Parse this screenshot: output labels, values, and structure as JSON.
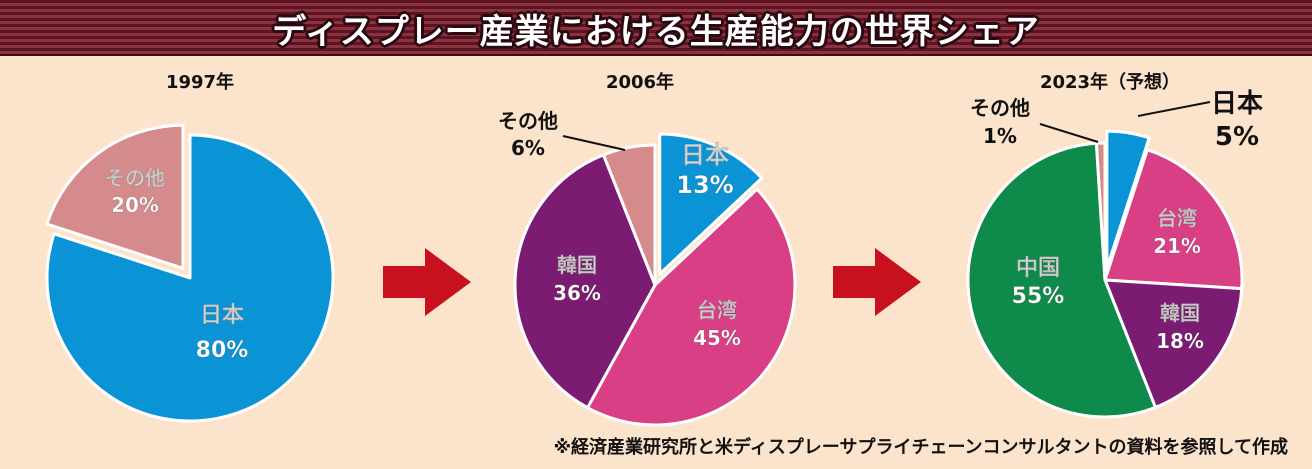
{
  "title": "ディスプレー産業における生産能力の世界シェア",
  "source": "※経済産業研究所と米ディスプレーサプライチェーンコンサルタントの資料を参照して作成",
  "colors": {
    "japan": "#0a94d6",
    "taiwan": "#d83f84",
    "korea": "#7b1b72",
    "china": "#0e8a4a",
    "other": "#d58b8b",
    "arrow": "#c8101e"
  },
  "chart_data": [
    {
      "type": "pie",
      "title": "1997年",
      "slices": [
        {
          "label": "日本",
          "value": 80,
          "value_label": "80%",
          "color": "#0a94d6"
        },
        {
          "label": "その他",
          "value": 20,
          "value_label": "20%",
          "color": "#d58b8b",
          "exploded": true
        }
      ]
    },
    {
      "type": "pie",
      "title": "2006年",
      "slices": [
        {
          "label": "日本",
          "value": 13,
          "value_label": "13%",
          "color": "#0a94d6",
          "exploded": true
        },
        {
          "label": "台湾",
          "value": 45,
          "value_label": "45%",
          "color": "#d83f84"
        },
        {
          "label": "韓国",
          "value": 36,
          "value_label": "36%",
          "color": "#7b1b72"
        },
        {
          "label": "その他",
          "value": 6,
          "value_label": "6%",
          "color": "#d58b8b"
        }
      ]
    },
    {
      "type": "pie",
      "title": "2023年（予想）",
      "slices": [
        {
          "label": "日本",
          "value": 5,
          "value_label": "5%",
          "color": "#0a94d6",
          "exploded": true
        },
        {
          "label": "台湾",
          "value": 21,
          "value_label": "21%",
          "color": "#d83f84"
        },
        {
          "label": "韓国",
          "value": 18,
          "value_label": "18%",
          "color": "#7b1b72"
        },
        {
          "label": "中国",
          "value": 55,
          "value_label": "55%",
          "color": "#0e8a4a"
        },
        {
          "label": "その他",
          "value": 1,
          "value_label": "1%",
          "color": "#d58b8b"
        }
      ]
    }
  ]
}
